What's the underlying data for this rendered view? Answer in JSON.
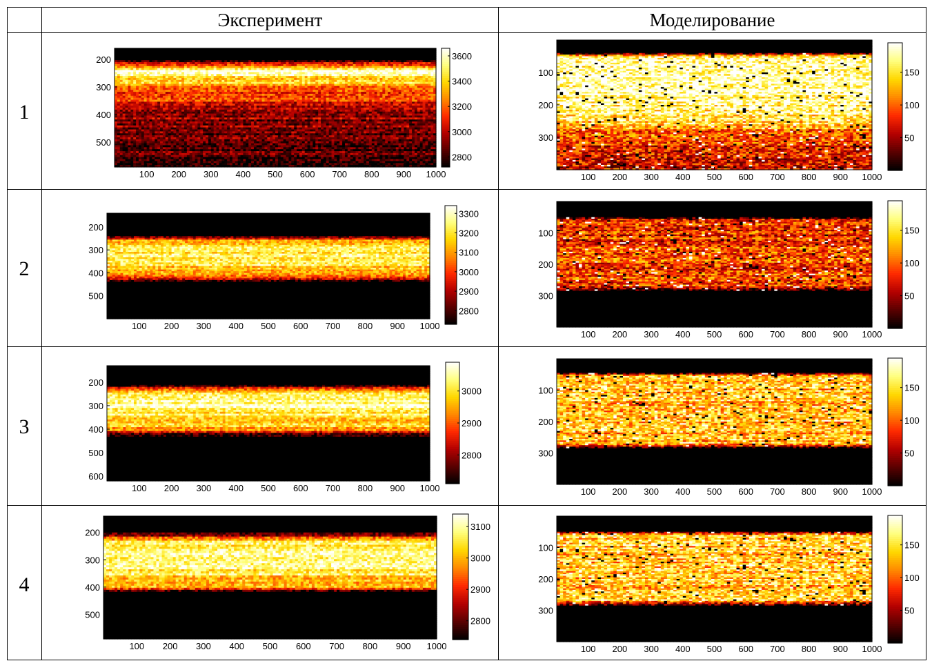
{
  "headers": {
    "col1": "Эксперимент",
    "col2": "Моделирование"
  },
  "rows": [
    {
      "label": "1"
    },
    {
      "label": "2"
    },
    {
      "label": "3"
    },
    {
      "label": "4"
    }
  ],
  "colormap": [
    "#000000",
    "#5a0000",
    "#b40000",
    "#ff2a00",
    "#ff8a00",
    "#ffd800",
    "#ffff80",
    "#ffffff"
  ],
  "chart_data": [
    {
      "type": "heatmap",
      "row": "1",
      "column": "Эксперимент",
      "x_ticks": [
        100,
        200,
        300,
        400,
        500,
        600,
        700,
        800,
        900,
        1000
      ],
      "y_ticks": [
        200,
        300,
        400,
        500
      ],
      "xlim": [
        0,
        1000
      ],
      "ylim": [
        160,
        590
      ],
      "colorbar_ticks": [
        2800,
        3000,
        3200,
        3400,
        3600
      ],
      "clim": [
        2720,
        3660
      ],
      "profile": {
        "depths": [
          160,
          200,
          215,
          240,
          270,
          310,
          400,
          500,
          590
        ],
        "values": [
          2720,
          2720,
          3050,
          3600,
          3450,
          3200,
          2950,
          2850,
          2800
        ]
      }
    },
    {
      "type": "heatmap",
      "row": "1",
      "column": "Моделирование",
      "x_ticks": [
        100,
        200,
        300,
        400,
        500,
        600,
        700,
        800,
        900,
        1000
      ],
      "y_ticks": [
        100,
        200,
        300
      ],
      "xlim": [
        0,
        1000
      ],
      "ylim": [
        0,
        400
      ],
      "colorbar_ticks": [
        50,
        100,
        150
      ],
      "clim": [
        0,
        195
      ],
      "profile": {
        "depths": [
          0,
          40,
          50,
          100,
          200,
          250,
          290,
          320,
          400
        ],
        "values": [
          0,
          0,
          175,
          190,
          175,
          150,
          100,
          80,
          60
        ]
      }
    },
    {
      "type": "heatmap",
      "row": "2",
      "column": "Эксперимент",
      "x_ticks": [
        100,
        200,
        300,
        400,
        500,
        600,
        700,
        800,
        900,
        1000
      ],
      "y_ticks": [
        200,
        300,
        400,
        500
      ],
      "xlim": [
        0,
        1000
      ],
      "ylim": [
        140,
        600
      ],
      "colorbar_ticks": [
        2800,
        2900,
        3000,
        3100,
        3200,
        3300
      ],
      "clim": [
        2730,
        3340
      ],
      "profile": {
        "depths": [
          140,
          240,
          260,
          300,
          350,
          390,
          420,
          440,
          600
        ],
        "values": [
          2730,
          2730,
          3150,
          3250,
          3200,
          3150,
          3000,
          2730,
          2730
        ]
      }
    },
    {
      "type": "heatmap",
      "row": "2",
      "column": "Моделирование",
      "x_ticks": [
        100,
        200,
        300,
        400,
        500,
        600,
        700,
        800,
        900,
        1000
      ],
      "y_ticks": [
        100,
        200,
        300
      ],
      "xlim": [
        0,
        1000
      ],
      "ylim": [
        0,
        400
      ],
      "colorbar_ticks": [
        50,
        100,
        150
      ],
      "clim": [
        0,
        195
      ],
      "profile": {
        "depths": [
          0,
          50,
          60,
          100,
          200,
          270,
          285,
          400
        ],
        "values": [
          0,
          0,
          90,
          85,
          90,
          90,
          0,
          0
        ]
      }
    },
    {
      "type": "heatmap",
      "row": "3",
      "column": "Эксперимент",
      "x_ticks": [
        100,
        200,
        300,
        400,
        500,
        600,
        700,
        800,
        900,
        1000
      ],
      "y_ticks": [
        200,
        300,
        400,
        500,
        600
      ],
      "xlim": [
        0,
        1000
      ],
      "ylim": [
        130,
        620
      ],
      "colorbar_ticks": [
        2800,
        2900,
        3000
      ],
      "clim": [
        2710,
        3090
      ],
      "profile": {
        "depths": [
          130,
          210,
          240,
          300,
          350,
          400,
          430,
          620
        ],
        "values": [
          2710,
          2710,
          2980,
          3060,
          3000,
          2950,
          2710,
          2710
        ]
      }
    },
    {
      "type": "heatmap",
      "row": "3",
      "column": "Моделирование",
      "x_ticks": [
        100,
        200,
        300,
        400,
        500,
        600,
        700,
        800,
        900,
        1000
      ],
      "y_ticks": [
        100,
        200,
        300
      ],
      "xlim": [
        0,
        1000
      ],
      "ylim": [
        0,
        400
      ],
      "colorbar_ticks": [
        50,
        100,
        150
      ],
      "clim": [
        0,
        195
      ],
      "profile": {
        "depths": [
          0,
          45,
          55,
          100,
          200,
          270,
          285,
          400
        ],
        "values": [
          0,
          0,
          140,
          135,
          135,
          130,
          0,
          0
        ]
      }
    },
    {
      "type": "heatmap",
      "row": "4",
      "column": "Эксперимент",
      "x_ticks": [
        100,
        200,
        300,
        400,
        500,
        600,
        700,
        800,
        900,
        1000
      ],
      "y_ticks": [
        200,
        300,
        400,
        500
      ],
      "xlim": [
        0,
        1000
      ],
      "ylim": [
        140,
        590
      ],
      "colorbar_ticks": [
        2800,
        2900,
        3000,
        3100
      ],
      "clim": [
        2740,
        3140
      ],
      "profile": {
        "depths": [
          140,
          200,
          230,
          300,
          350,
          400,
          420,
          590
        ],
        "values": [
          2740,
          2740,
          3050,
          3100,
          3050,
          3000,
          2740,
          2740
        ]
      }
    },
    {
      "type": "heatmap",
      "row": "4",
      "column": "Моделирование",
      "x_ticks": [
        100,
        200,
        300,
        400,
        500,
        600,
        700,
        800,
        900,
        1000
      ],
      "y_ticks": [
        100,
        200,
        300
      ],
      "xlim": [
        0,
        1000
      ],
      "ylim": [
        0,
        400
      ],
      "colorbar_ticks": [
        50,
        100,
        150
      ],
      "clim": [
        0,
        195
      ],
      "profile": {
        "depths": [
          0,
          50,
          60,
          100,
          200,
          270,
          285,
          400
        ],
        "values": [
          0,
          0,
          140,
          140,
          140,
          135,
          0,
          0
        ]
      }
    }
  ]
}
